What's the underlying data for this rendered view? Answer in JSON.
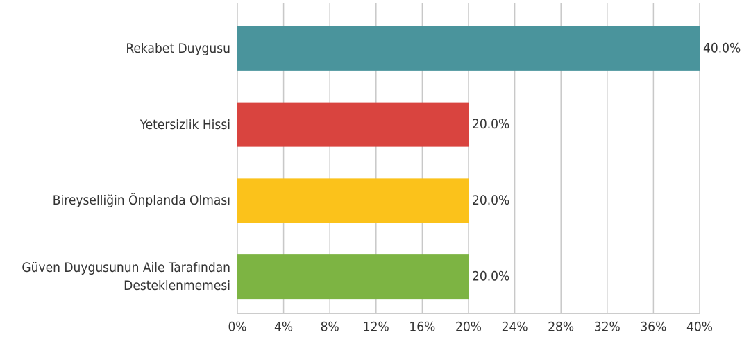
{
  "chart_data": {
    "type": "bar",
    "orientation": "horizontal",
    "categories": [
      "Rekabet Duygusu",
      "Yetersizlik Hissi",
      "Bireyselliğin Önplanda Olması",
      "Güven Duygusunun Aile Tarafından Desteklenmemesi"
    ],
    "values": [
      40,
      20,
      20,
      20
    ],
    "value_labels": [
      "40.0%",
      "20.0%",
      "20.0%",
      "20.0%"
    ],
    "colors": [
      "#4a949c",
      "#d9443f",
      "#fbc21b",
      "#7db443"
    ],
    "xlim": [
      0,
      40
    ],
    "xticks": [
      {
        "value": 0,
        "label": "0%"
      },
      {
        "value": 4,
        "label": "4%"
      },
      {
        "value": 8,
        "label": "8%"
      },
      {
        "value": 12,
        "label": "12%"
      },
      {
        "value": 16,
        "label": "16%"
      },
      {
        "value": 20,
        "label": "20%"
      },
      {
        "value": 24,
        "label": "24%"
      },
      {
        "value": 28,
        "label": "28%"
      },
      {
        "value": 32,
        "label": "32%"
      },
      {
        "value": 36,
        "label": "36%"
      },
      {
        "value": 40,
        "label": "40%"
      }
    ],
    "grid": true
  }
}
